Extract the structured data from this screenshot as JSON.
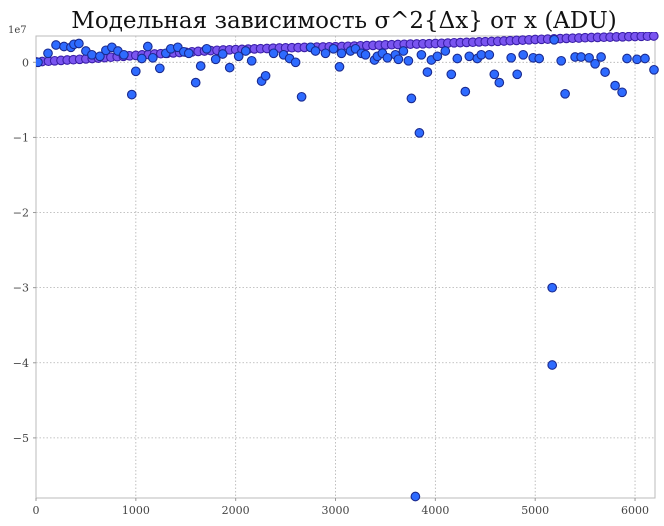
{
  "chart_data": {
    "type": "scatter",
    "title": "Модельная зависимость σ^2{Δx} от x (ADU)",
    "xlabel": "",
    "ylabel": "",
    "xlim": [
      0,
      6200
    ],
    "ylim": [
      -58000000,
      3500000
    ],
    "y_offset_text": "1e7",
    "grid": true,
    "xticks": [
      0,
      1000,
      2000,
      3000,
      4000,
      5000,
      6000
    ],
    "xtick_labels": [
      "0",
      "1000",
      "2000",
      "3000",
      "4000",
      "5000",
      "6000"
    ],
    "yticks": [
      0,
      -10000000,
      -20000000,
      -30000000,
      -40000000,
      -50000000
    ],
    "ytick_labels": [
      "0",
      "−1",
      "−2",
      "−3",
      "−4",
      "−5"
    ],
    "colors": {
      "face_main": "#2e6bff",
      "edge_main": "#1a2a8f",
      "face_trend": "#7a55f0",
      "edge_trend": "#3a1fa8",
      "grid": "#b0b0b0",
      "frame": "#bbbbbb"
    },
    "series": [
      {
        "style": "trend",
        "x": [
          0,
          62,
          125,
          187,
          250,
          313,
          375,
          438,
          500,
          563,
          625,
          688,
          750,
          813,
          875,
          938,
          1000,
          1063,
          1125,
          1188,
          1250,
          1313,
          1375,
          1438,
          1500,
          1563,
          1625,
          1688,
          1750,
          1813,
          1875,
          1938,
          2000,
          2063,
          2125,
          2188,
          2250,
          2313,
          2375,
          2438,
          2500,
          2563,
          2625,
          2688,
          2750,
          2813,
          2875,
          2938,
          3000,
          3063,
          3125,
          3188,
          3250,
          3313,
          3375,
          3438,
          3500,
          3563,
          3625,
          3688,
          3750,
          3813,
          3875,
          3938,
          4000,
          4063,
          4125,
          4188,
          4250,
          4313,
          4375,
          4438,
          4500,
          4563,
          4625,
          4688,
          4750,
          4813,
          4875,
          4938,
          5000,
          5063,
          5125,
          5188,
          5250,
          5313,
          5375,
          5438,
          5500,
          5563,
          5625,
          5688,
          5750,
          5813,
          5875,
          5938,
          6000,
          6063,
          6125,
          6188
        ],
        "y": [
          50000,
          100000,
          150000,
          200000,
          250000,
          300000,
          350000,
          400000,
          450000,
          500000,
          560000,
          620000,
          680000,
          740000,
          800000,
          860000,
          920000,
          980000,
          1040000,
          1100000,
          1150000,
          1200000,
          1250000,
          1300000,
          1350000,
          1400000,
          1450000,
          1500000,
          1550000,
          1600000,
          1630000,
          1660000,
          1690000,
          1720000,
          1750000,
          1780000,
          1810000,
          1840000,
          1870000,
          1900000,
          1920000,
          1940000,
          1960000,
          1980000,
          2000000,
          2020000,
          2040000,
          2060000,
          2080000,
          2100000,
          2130000,
          2160000,
          2190000,
          2220000,
          2250000,
          2280000,
          2310000,
          2340000,
          2370000,
          2400000,
          2420000,
          2440000,
          2460000,
          2480000,
          2500000,
          2530000,
          2560000,
          2590000,
          2620000,
          2650000,
          2680000,
          2710000,
          2740000,
          2770000,
          2800000,
          2840000,
          2880000,
          2920000,
          2960000,
          3000000,
          3030000,
          3060000,
          3090000,
          3120000,
          3150000,
          3180000,
          3210000,
          3240000,
          3270000,
          3300000,
          3320000,
          3340000,
          3360000,
          3380000,
          3400000,
          3420000,
          3440000,
          3460000,
          3480000,
          3500000
        ]
      },
      {
        "style": "main",
        "x": [
          20,
          120,
          200,
          280,
          350,
          380,
          430,
          500,
          560,
          640,
          700,
          760,
          820,
          880,
          960,
          1000,
          1060,
          1120,
          1170,
          1240,
          1300,
          1350,
          1420,
          1480,
          1530,
          1600,
          1650,
          1710,
          1800,
          1870,
          1940,
          2030,
          2100,
          2160,
          2260,
          2300,
          2380,
          2480,
          2540,
          2600,
          2660,
          2750,
          2800,
          2900,
          2980,
          3040,
          3060,
          3150,
          3200,
          3260,
          3300,
          3390,
          3420,
          3470,
          3520,
          3600,
          3630,
          3680,
          3730,
          3760,
          3800,
          3840,
          3860,
          3920,
          3960,
          4020,
          4100,
          4160,
          4220,
          4300,
          4340,
          4420,
          4460,
          4540,
          4590,
          4640,
          4760,
          4820,
          4880,
          4980,
          5040,
          5170,
          5170,
          5190,
          5260,
          5300,
          5400,
          5460,
          5540,
          5600,
          5660,
          5700,
          5800,
          5870,
          5920,
          6020,
          6100,
          6190
        ],
        "y": [
          0,
          1200000,
          2300000,
          2100000,
          2000000,
          2400000,
          2500000,
          1500000,
          1000000,
          800000,
          1600000,
          2000000,
          1500000,
          1000000,
          -4300000,
          -1200000,
          500000,
          2100000,
          600000,
          -800000,
          1200000,
          1800000,
          2000000,
          1400000,
          1200000,
          -2700000,
          -500000,
          1800000,
          400000,
          1100000,
          -700000,
          800000,
          1500000,
          200000,
          -2500000,
          -1800000,
          1200000,
          1000000,
          500000,
          0,
          -4600000,
          2000000,
          1500000,
          1200000,
          1800000,
          -600000,
          1200000,
          1500000,
          1800000,
          1200000,
          1000000,
          300000,
          800000,
          1200000,
          600000,
          1000000,
          400000,
          1500000,
          200000,
          -4800000,
          -57800000,
          -9400000,
          1000000,
          -1300000,
          300000,
          800000,
          1500000,
          -1600000,
          500000,
          -3900000,
          800000,
          500000,
          1000000,
          1000000,
          -1600000,
          -2700000,
          600000,
          -1600000,
          1000000,
          600000,
          500000,
          -30000000,
          -40300000,
          3000000,
          200000,
          -4200000,
          700000,
          700000,
          600000,
          -200000,
          700000,
          -1300000,
          -3100000,
          -4000000,
          500000,
          400000,
          500000,
          -1000000
        ]
      }
    ]
  }
}
